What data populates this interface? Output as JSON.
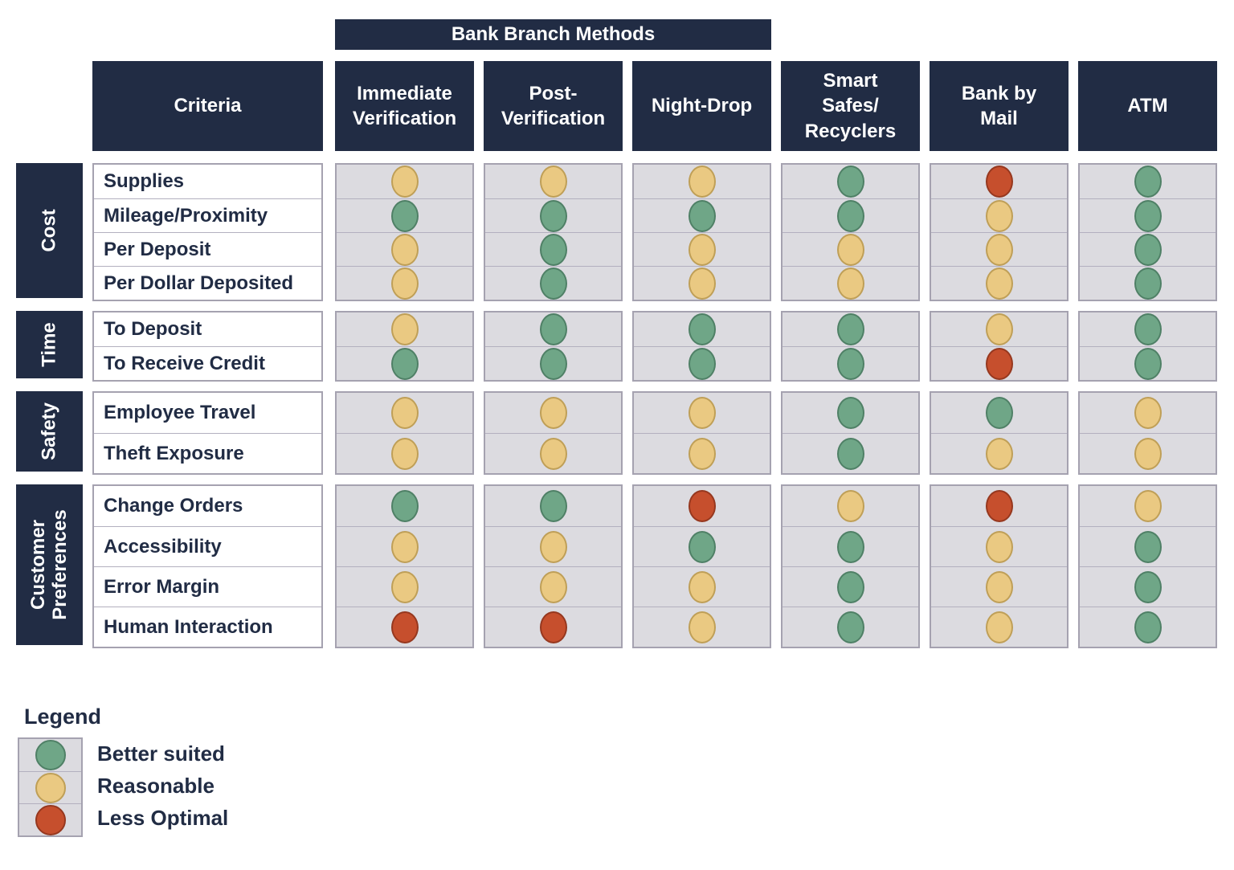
{
  "banner": {
    "label": "Bank Branch Methods"
  },
  "header": {
    "criteria": "Criteria",
    "methods": [
      "Immediate\nVerification",
      "Post-\nVerification",
      "Night-Drop",
      "Smart\nSafes/\nRecyclers",
      "Bank by\nMail",
      "ATM"
    ]
  },
  "chart_data": {
    "type": "table",
    "title": "Bank Branch Methods",
    "columns": [
      "Immediate Verification",
      "Post-Verification",
      "Night-Drop",
      "Smart Safes/Recyclers",
      "Bank by Mail",
      "ATM"
    ],
    "rating_scale": {
      "better": "Better suited",
      "reasonable": "Reasonable",
      "less": "Less Optimal"
    },
    "groups": [
      {
        "label": "Cost",
        "rows": [
          {
            "criterion": "Supplies",
            "ratings": [
              "reasonable",
              "reasonable",
              "reasonable",
              "better",
              "less",
              "better"
            ]
          },
          {
            "criterion": "Mileage/Proximity",
            "ratings": [
              "better",
              "better",
              "better",
              "better",
              "reasonable",
              "better"
            ]
          },
          {
            "criterion": "Per Deposit",
            "ratings": [
              "reasonable",
              "better",
              "reasonable",
              "reasonable",
              "reasonable",
              "better"
            ]
          },
          {
            "criterion": "Per Dollar Deposited",
            "ratings": [
              "reasonable",
              "better",
              "reasonable",
              "reasonable",
              "reasonable",
              "better"
            ]
          }
        ]
      },
      {
        "label": "Time",
        "rows": [
          {
            "criterion": "To Deposit",
            "ratings": [
              "reasonable",
              "better",
              "better",
              "better",
              "reasonable",
              "better"
            ]
          },
          {
            "criterion": "To Receive Credit",
            "ratings": [
              "better",
              "better",
              "better",
              "better",
              "less",
              "better"
            ]
          }
        ]
      },
      {
        "label": "Safety",
        "rows": [
          {
            "criterion": "Employee Travel",
            "ratings": [
              "reasonable",
              "reasonable",
              "reasonable",
              "better",
              "better",
              "reasonable"
            ]
          },
          {
            "criterion": "Theft Exposure",
            "ratings": [
              "reasonable",
              "reasonable",
              "reasonable",
              "better",
              "reasonable",
              "reasonable"
            ]
          }
        ]
      },
      {
        "label": "Customer Preferences",
        "rows": [
          {
            "criterion": "Change Orders",
            "ratings": [
              "better",
              "better",
              "less",
              "reasonable",
              "less",
              "reasonable"
            ]
          },
          {
            "criterion": "Accessibility",
            "ratings": [
              "reasonable",
              "reasonable",
              "better",
              "better",
              "reasonable",
              "better"
            ]
          },
          {
            "criterion": "Error Margin",
            "ratings": [
              "reasonable",
              "reasonable",
              "reasonable",
              "better",
              "reasonable",
              "better"
            ]
          },
          {
            "criterion": "Human Interaction",
            "ratings": [
              "less",
              "less",
              "reasonable",
              "better",
              "reasonable",
              "better"
            ]
          }
        ]
      }
    ]
  },
  "legend": {
    "title": "Legend",
    "items": [
      {
        "rating": "better",
        "label": "Better suited"
      },
      {
        "rating": "reasonable",
        "label": "Reasonable"
      },
      {
        "rating": "less",
        "label": "Less Optimal"
      }
    ]
  },
  "colors": {
    "navy": "#212c44",
    "cell_bg": "#dcdbe0",
    "cell_border": "#a5a2b0",
    "better": "#6fa687",
    "better_border": "#4f8066",
    "reasonable": "#eac982",
    "reasonable_border": "#bf9f57",
    "less": "#c64f2d",
    "less_border": "#96381f"
  }
}
